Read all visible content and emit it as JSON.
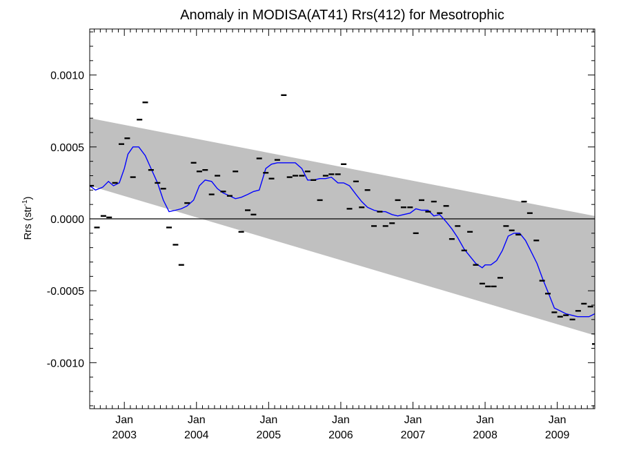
{
  "chart_data": {
    "type": "scatter",
    "title": "Anomaly in MODISA(AT41) Rrs(412) for Mesotrophic",
    "ylabel": {
      "main": "Rrs (str",
      "sup": "-1",
      "close": ")"
    },
    "xlabel": "",
    "xlim": [
      2002.52,
      2009.52
    ],
    "ylim": [
      -0.00132,
      0.00132
    ],
    "y_ticks": [
      {
        "value": 0.001,
        "label": "0.0010"
      },
      {
        "value": 0.0005,
        "label": "0.0005"
      },
      {
        "value": 0.0,
        "label": "0.0000"
      },
      {
        "value": -0.0005,
        "label": "-0.0005"
      },
      {
        "value": -0.001,
        "label": "-0.0010"
      }
    ],
    "x_ticks": [
      {
        "value": 2003.0,
        "month": "Jan",
        "year": "2003"
      },
      {
        "value": 2004.0,
        "month": "Jan",
        "year": "2004"
      },
      {
        "value": 2005.0,
        "month": "Jan",
        "year": "2005"
      },
      {
        "value": 2006.0,
        "month": "Jan",
        "year": "2006"
      },
      {
        "value": 2007.0,
        "month": "Jan",
        "year": "2007"
      },
      {
        "value": 2008.0,
        "month": "Jan",
        "year": "2008"
      },
      {
        "value": 2009.0,
        "month": "Jan",
        "year": "2009"
      }
    ],
    "zero_line": 0.0,
    "band": {
      "upper": [
        [
          2002.52,
          0.0007
        ],
        [
          2009.52,
          2e-05
        ]
      ],
      "lower": [
        [
          2002.52,
          0.00023
        ],
        [
          2009.52,
          -0.00081
        ]
      ],
      "color": "#c0c0c0"
    },
    "monthly_anomaly": [
      [
        2002.54,
        0.00023
      ],
      [
        2002.62,
        -6e-05
      ],
      [
        2002.71,
        2e-05
      ],
      [
        2002.79,
        1e-05
      ],
      [
        2002.87,
        0.00025
      ],
      [
        2002.96,
        0.00052
      ],
      [
        2003.04,
        0.00056
      ],
      [
        2003.12,
        0.00029
      ],
      [
        2003.21,
        0.00069
      ],
      [
        2003.29,
        0.00081
      ],
      [
        2003.37,
        0.00034
      ],
      [
        2003.46,
        0.00025
      ],
      [
        2003.54,
        0.00021
      ],
      [
        2003.62,
        -6e-05
      ],
      [
        2003.71,
        -0.00018
      ],
      [
        2003.79,
        -0.00032
      ],
      [
        2003.87,
        0.00011
      ],
      [
        2003.96,
        0.00039
      ],
      [
        2004.04,
        0.00033
      ],
      [
        2004.12,
        0.00034
      ],
      [
        2004.21,
        0.00017
      ],
      [
        2004.29,
        0.0003
      ],
      [
        2004.37,
        0.00019
      ],
      [
        2004.46,
        0.00016
      ],
      [
        2004.54,
        0.00033
      ],
      [
        2004.62,
        -9e-05
      ],
      [
        2004.71,
        6e-05
      ],
      [
        2004.79,
        3e-05
      ],
      [
        2004.87,
        0.00042
      ],
      [
        2004.96,
        0.00032
      ],
      [
        2005.04,
        0.00028
      ],
      [
        2005.12,
        0.00041
      ],
      [
        2005.21,
        0.00086
      ],
      [
        2005.29,
        0.00029
      ],
      [
        2005.37,
        0.0003
      ],
      [
        2005.46,
        0.0003
      ],
      [
        2005.54,
        0.00033
      ],
      [
        2005.62,
        0.00027
      ],
      [
        2005.71,
        0.00013
      ],
      [
        2005.79,
        0.0003
      ],
      [
        2005.87,
        0.00031
      ],
      [
        2005.96,
        0.00031
      ],
      [
        2006.04,
        0.00038
      ],
      [
        2006.12,
        7e-05
      ],
      [
        2006.21,
        0.00026
      ],
      [
        2006.29,
        8e-05
      ],
      [
        2006.37,
        0.0002
      ],
      [
        2006.46,
        -5e-05
      ],
      [
        2006.54,
        5e-05
      ],
      [
        2006.62,
        -5e-05
      ],
      [
        2006.71,
        -3e-05
      ],
      [
        2006.79,
        0.00013
      ],
      [
        2006.87,
        8e-05
      ],
      [
        2006.96,
        8e-05
      ],
      [
        2007.04,
        -0.0001
      ],
      [
        2007.12,
        0.00013
      ],
      [
        2007.21,
        5e-05
      ],
      [
        2007.29,
        0.00012
      ],
      [
        2007.37,
        4e-05
      ],
      [
        2007.46,
        9e-05
      ],
      [
        2007.54,
        -0.00014
      ],
      [
        2007.62,
        -5e-05
      ],
      [
        2007.71,
        -0.00022
      ],
      [
        2007.79,
        -9e-05
      ],
      [
        2007.87,
        -0.00032
      ],
      [
        2007.96,
        -0.00045
      ],
      [
        2008.04,
        -0.00047
      ],
      [
        2008.12,
        -0.00047
      ],
      [
        2008.21,
        -0.00041
      ],
      [
        2008.29,
        -5e-05
      ],
      [
        2008.37,
        -8e-05
      ],
      [
        2008.46,
        -0.00011
      ],
      [
        2008.54,
        0.00012
      ],
      [
        2008.62,
        4e-05
      ],
      [
        2008.71,
        -0.00015
      ],
      [
        2008.79,
        -0.00043
      ],
      [
        2008.87,
        -0.00052
      ],
      [
        2008.96,
        -0.00065
      ],
      [
        2009.04,
        -0.00068
      ],
      [
        2009.12,
        -0.00067
      ],
      [
        2009.21,
        -0.0007
      ],
      [
        2009.29,
        -0.00064
      ],
      [
        2009.37,
        -0.00059
      ],
      [
        2009.46,
        -0.00061
      ],
      [
        2009.52,
        -0.00087
      ]
    ],
    "smoothed": [
      [
        2002.52,
        0.00023
      ],
      [
        2002.6,
        0.0002
      ],
      [
        2002.7,
        0.00022
      ],
      [
        2002.78,
        0.00026
      ],
      [
        2002.85,
        0.00023
      ],
      [
        2002.93,
        0.00025
      ],
      [
        2003.0,
        0.00035
      ],
      [
        2003.05,
        0.00045
      ],
      [
        2003.12,
        0.0005
      ],
      [
        2003.2,
        0.0005
      ],
      [
        2003.29,
        0.00044
      ],
      [
        2003.37,
        0.00035
      ],
      [
        2003.46,
        0.00025
      ],
      [
        2003.54,
        0.00013
      ],
      [
        2003.62,
        5e-05
      ],
      [
        2003.71,
        6e-05
      ],
      [
        2003.79,
        7e-05
      ],
      [
        2003.87,
        9e-05
      ],
      [
        2003.96,
        0.00013
      ],
      [
        2004.04,
        0.00023
      ],
      [
        2004.12,
        0.00027
      ],
      [
        2004.21,
        0.00026
      ],
      [
        2004.29,
        0.00021
      ],
      [
        2004.37,
        0.00018
      ],
      [
        2004.46,
        0.00016
      ],
      [
        2004.54,
        0.00014
      ],
      [
        2004.62,
        0.00015
      ],
      [
        2004.71,
        0.00017
      ],
      [
        2004.79,
        0.00019
      ],
      [
        2004.87,
        0.0002
      ],
      [
        2004.96,
        0.00035
      ],
      [
        2005.04,
        0.00038
      ],
      [
        2005.12,
        0.00039
      ],
      [
        2005.21,
        0.00039
      ],
      [
        2005.29,
        0.00039
      ],
      [
        2005.37,
        0.00039
      ],
      [
        2005.46,
        0.00035
      ],
      [
        2005.54,
        0.00027
      ],
      [
        2005.62,
        0.00027
      ],
      [
        2005.71,
        0.00028
      ],
      [
        2005.79,
        0.00028
      ],
      [
        2005.87,
        0.00029
      ],
      [
        2005.96,
        0.00025
      ],
      [
        2006.04,
        0.00025
      ],
      [
        2006.12,
        0.00023
      ],
      [
        2006.21,
        0.00017
      ],
      [
        2006.29,
        0.00012
      ],
      [
        2006.37,
        8e-05
      ],
      [
        2006.46,
        6e-05
      ],
      [
        2006.54,
        5e-05
      ],
      [
        2006.62,
        5e-05
      ],
      [
        2006.71,
        3e-05
      ],
      [
        2006.79,
        2e-05
      ],
      [
        2006.87,
        3e-05
      ],
      [
        2006.96,
        4e-05
      ],
      [
        2007.04,
        7e-05
      ],
      [
        2007.12,
        6e-05
      ],
      [
        2007.21,
        6e-05
      ],
      [
        2007.29,
        2e-05
      ],
      [
        2007.37,
        3e-05
      ],
      [
        2007.46,
        -2e-05
      ],
      [
        2007.54,
        -7e-05
      ],
      [
        2007.62,
        -0.00013
      ],
      [
        2007.71,
        -0.00021
      ],
      [
        2007.79,
        -0.00026
      ],
      [
        2007.87,
        -0.00031
      ],
      [
        2007.96,
        -0.00034
      ],
      [
        2008.0,
        -0.00032
      ],
      [
        2008.08,
        -0.00032
      ],
      [
        2008.16,
        -0.00029
      ],
      [
        2008.24,
        -0.00022
      ],
      [
        2008.32,
        -0.00012
      ],
      [
        2008.4,
        -0.0001
      ],
      [
        2008.48,
        -0.0001
      ],
      [
        2008.56,
        -0.00015
      ],
      [
        2008.64,
        -0.00023
      ],
      [
        2008.72,
        -0.00031
      ],
      [
        2008.8,
        -0.00042
      ],
      [
        2008.88,
        -0.00052
      ],
      [
        2008.96,
        -0.00062
      ],
      [
        2009.04,
        -0.00064
      ],
      [
        2009.12,
        -0.00066
      ],
      [
        2009.2,
        -0.00067
      ],
      [
        2009.28,
        -0.00068
      ],
      [
        2009.36,
        -0.00068
      ],
      [
        2009.44,
        -0.00068
      ],
      [
        2009.52,
        -0.00066
      ]
    ],
    "colors": {
      "band": "#c0c0c0",
      "smoothed": "#0000ff",
      "points": "#000000",
      "zero_line": "#000000",
      "axes": "#000000"
    },
    "grid": false
  }
}
